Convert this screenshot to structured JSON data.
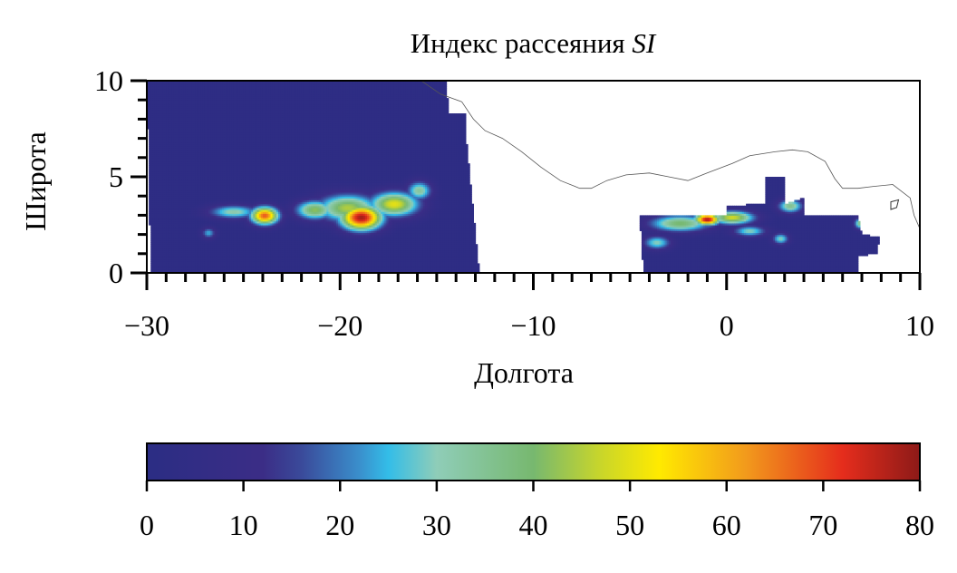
{
  "chart_data": {
    "type": "heatmap",
    "title_text": "Индекс рассеяния ",
    "title_symbol": "SI",
    "xlabel": "Долгота",
    "ylabel": "Широта",
    "xlim": [
      -30,
      10
    ],
    "ylim": [
      0,
      10
    ],
    "x_ticks": [
      -30,
      -20,
      -10,
      0,
      10
    ],
    "x_tick_labels": [
      "−30",
      "−20",
      "−10",
      "0",
      "10"
    ],
    "y_ticks": [
      0,
      5,
      10
    ],
    "y_tick_labels": [
      "0",
      "5",
      "10"
    ],
    "background_value": 2,
    "regions": [
      {
        "name": "west",
        "polygon": [
          [
            -30,
            10
          ],
          [
            -14.5,
            10
          ],
          [
            -14.4,
            8.3
          ],
          [
            -13.5,
            8.3
          ],
          [
            -13.5,
            7.2
          ],
          [
            -12.8,
            0
          ],
          [
            -29.8,
            0
          ]
        ]
      },
      {
        "name": "east",
        "polygon": [
          [
            -4.5,
            3
          ],
          [
            6.8,
            3
          ],
          [
            7,
            2
          ],
          [
            7.9,
            1.9
          ],
          [
            7.8,
            1.0
          ],
          [
            6.8,
            0.9
          ],
          [
            6.8,
            0
          ],
          [
            -4.3,
            0
          ]
        ]
      },
      {
        "name": "east-upper",
        "polygon": [
          [
            0,
            3.5
          ],
          [
            2,
            3.6
          ],
          [
            2,
            5.0
          ],
          [
            3,
            5.0
          ],
          [
            3,
            3.6
          ],
          [
            4,
            3.9
          ],
          [
            4,
            3.0
          ],
          [
            0,
            3.0
          ]
        ]
      }
    ],
    "hotspots": [
      {
        "lon": -23.9,
        "lat": 3.0,
        "sigma_lon": 0.5,
        "sigma_lat": 0.32,
        "value": 68
      },
      {
        "lon": -25.5,
        "lat": 3.2,
        "sigma_lon": 0.9,
        "sigma_lat": 0.25,
        "value": 32
      },
      {
        "lon": -26.8,
        "lat": 2.1,
        "sigma_lon": 0.25,
        "sigma_lat": 0.2,
        "value": 24
      },
      {
        "lon": -21.3,
        "lat": 3.3,
        "sigma_lon": 0.7,
        "sigma_lat": 0.35,
        "value": 42
      },
      {
        "lon": -18.9,
        "lat": 2.9,
        "sigma_lon": 0.75,
        "sigma_lat": 0.45,
        "value": 78
      },
      {
        "lon": -19.6,
        "lat": 3.4,
        "sigma_lon": 1.1,
        "sigma_lat": 0.5,
        "value": 45
      },
      {
        "lon": -17.2,
        "lat": 3.6,
        "sigma_lon": 0.9,
        "sigma_lat": 0.45,
        "value": 50
      },
      {
        "lon": -15.9,
        "lat": 4.3,
        "sigma_lon": 0.45,
        "sigma_lat": 0.35,
        "value": 34
      },
      {
        "lon": -1.0,
        "lat": 2.8,
        "sigma_lon": 0.45,
        "sigma_lat": 0.2,
        "value": 78
      },
      {
        "lon": -2.4,
        "lat": 2.6,
        "sigma_lon": 1.1,
        "sigma_lat": 0.3,
        "value": 40
      },
      {
        "lon": 0.3,
        "lat": 2.9,
        "sigma_lon": 0.8,
        "sigma_lat": 0.25,
        "value": 48
      },
      {
        "lon": -3.6,
        "lat": 1.6,
        "sigma_lon": 0.5,
        "sigma_lat": 0.25,
        "value": 30
      },
      {
        "lon": 3.3,
        "lat": 3.5,
        "sigma_lon": 0.45,
        "sigma_lat": 0.25,
        "value": 36
      },
      {
        "lon": 1.2,
        "lat": 2.2,
        "sigma_lon": 0.6,
        "sigma_lat": 0.2,
        "value": 30
      },
      {
        "lon": 2.8,
        "lat": 1.8,
        "sigma_lon": 0.3,
        "sigma_lat": 0.2,
        "value": 30
      },
      {
        "lon": 6.9,
        "lat": 2.6,
        "sigma_lon": 0.2,
        "sigma_lat": 0.2,
        "value": 36
      }
    ],
    "coastline": [
      [
        -15.8,
        10
      ],
      [
        -14.8,
        9.3
      ],
      [
        -13.7,
        8.9
      ],
      [
        -13.1,
        8.0
      ],
      [
        -12.5,
        7.4
      ],
      [
        -11.6,
        7.0
      ],
      [
        -10.6,
        6.3
      ],
      [
        -9.6,
        5.5
      ],
      [
        -8.6,
        4.8
      ],
      [
        -7.6,
        4.4
      ],
      [
        -7.0,
        4.4
      ],
      [
        -6.2,
        4.8
      ],
      [
        -5.2,
        5.1
      ],
      [
        -4.0,
        5.2
      ],
      [
        -3.0,
        5.0
      ],
      [
        -2.0,
        4.8
      ],
      [
        -1.0,
        5.2
      ],
      [
        0.3,
        5.7
      ],
      [
        1.2,
        6.1
      ],
      [
        2.5,
        6.3
      ],
      [
        3.4,
        6.4
      ],
      [
        4.2,
        6.3
      ],
      [
        5.1,
        5.8
      ],
      [
        5.6,
        4.9
      ],
      [
        6.0,
        4.4
      ],
      [
        6.8,
        4.4
      ],
      [
        7.6,
        4.5
      ],
      [
        8.6,
        4.6
      ],
      [
        9.5,
        3.9
      ],
      [
        9.7,
        3.0
      ],
      [
        10.0,
        2.3
      ]
    ],
    "island": [
      [
        8.5,
        3.7
      ],
      [
        8.9,
        3.8
      ],
      [
        8.8,
        3.4
      ],
      [
        8.5,
        3.3
      ]
    ],
    "colorbar": {
      "range": [
        0,
        80
      ],
      "ticks": [
        0,
        10,
        20,
        30,
        40,
        50,
        60,
        70,
        80
      ],
      "tick_labels": [
        "0",
        "10",
        "20",
        "30",
        "40",
        "50",
        "60",
        "70",
        "80"
      ],
      "stops": [
        {
          "value": 0,
          "color": "#2b2d84"
        },
        {
          "value": 12,
          "color": "#3b2d86"
        },
        {
          "value": 16,
          "color": "#3a4a9a"
        },
        {
          "value": 22,
          "color": "#3a8fcc"
        },
        {
          "value": 25,
          "color": "#33bde8"
        },
        {
          "value": 30,
          "color": "#8fcdb8"
        },
        {
          "value": 40,
          "color": "#77b86f"
        },
        {
          "value": 47,
          "color": "#c9d62a"
        },
        {
          "value": 53,
          "color": "#ffea00"
        },
        {
          "value": 62,
          "color": "#f29a1c"
        },
        {
          "value": 72,
          "color": "#e52d1c"
        },
        {
          "value": 80,
          "color": "#8d1a18"
        }
      ]
    }
  }
}
